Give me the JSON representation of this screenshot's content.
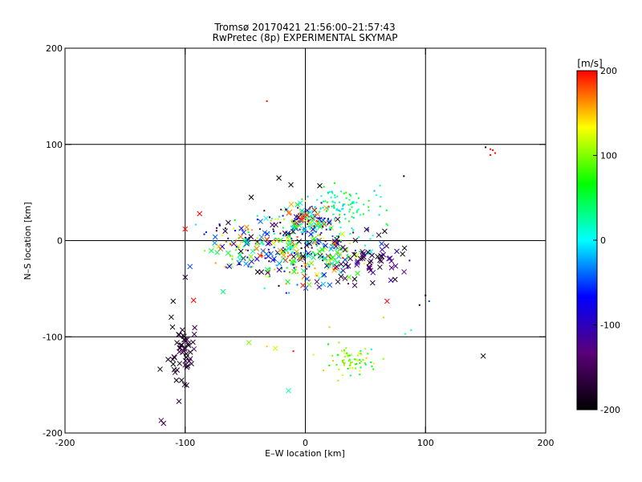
{
  "chart_data": {
    "type": "scatter",
    "title": "Tromsø 20170421 21:56:00–21:57:43",
    "subtitle": "RwPretec (8p) EXPERIMENTAL SKYMAP",
    "xlabel": "E–W location [km]",
    "ylabel": "N–S location [km]",
    "xlim": [
      -200,
      200
    ],
    "ylim": [
      -200,
      200
    ],
    "xticks": [
      -200,
      -100,
      0,
      100,
      200
    ],
    "yticks": [
      -200,
      -100,
      0,
      100,
      200
    ],
    "xtick_labels": [
      "-200",
      "-100",
      "0",
      "100",
      "200"
    ],
    "ytick_labels": [
      "-200",
      "-100",
      "0",
      "100",
      "200"
    ],
    "grid_lines": [
      -100,
      0,
      100
    ],
    "colorbar": {
      "label": "[m/s]",
      "range": [
        -200,
        200
      ],
      "ticks": [
        200,
        100,
        0,
        -100,
        -200
      ],
      "tick_labels": [
        "200",
        "100",
        "0",
        "-100",
        "-200"
      ],
      "stops": [
        "#000000",
        "#5a0078",
        "#0000ff",
        "#00ffff",
        "#00ff00",
        "#ffff00",
        "#ff0000"
      ]
    },
    "clusters": [
      {
        "cx": -5,
        "cy": -15,
        "sx": 28,
        "sy": 15,
        "n": 300,
        "vmin": -200,
        "vmax": 200,
        "marker": "mix"
      },
      {
        "cx": 0,
        "cy": 22,
        "sx": 12,
        "sy": 9,
        "n": 140,
        "vmin": -200,
        "vmax": 200,
        "marker": "mix"
      },
      {
        "cx": 30,
        "cy": 35,
        "sx": 18,
        "sy": 12,
        "n": 110,
        "vmin": -20,
        "vmax": 80,
        "marker": "dot"
      },
      {
        "cx": -55,
        "cy": 0,
        "sx": 18,
        "sy": 12,
        "n": 80,
        "vmin": -200,
        "vmax": 200,
        "marker": "mix"
      },
      {
        "cx": 50,
        "cy": -20,
        "sx": 15,
        "sy": 12,
        "n": 60,
        "vmin": -200,
        "vmax": -100,
        "marker": "x"
      },
      {
        "cx": -102,
        "cy": -120,
        "sx": 6,
        "sy": 18,
        "n": 50,
        "vmin": -200,
        "vmax": -150,
        "marker": "x"
      },
      {
        "cx": 40,
        "cy": -125,
        "sx": 10,
        "sy": 7,
        "n": 70,
        "vmin": 50,
        "vmax": 150,
        "marker": "dot"
      }
    ],
    "points": [
      {
        "x": -32,
        "y": 145,
        "v": 200,
        "m": "dot"
      },
      {
        "x": 150,
        "y": 97,
        "v": -200,
        "m": "dot"
      },
      {
        "x": 154,
        "y": 95,
        "v": 200,
        "m": "dot"
      },
      {
        "x": 156,
        "y": 94,
        "v": 200,
        "m": "dot"
      },
      {
        "x": 158,
        "y": 91,
        "v": 200,
        "m": "dot"
      },
      {
        "x": 154,
        "y": 89,
        "v": 200,
        "m": "dot"
      },
      {
        "x": 148,
        "y": -120,
        "v": -200,
        "m": "x"
      },
      {
        "x": -120,
        "y": -187,
        "v": -150,
        "m": "x"
      },
      {
        "x": -118,
        "y": -190,
        "v": -150,
        "m": "x"
      },
      {
        "x": -14,
        "y": -156,
        "v": 20,
        "m": "x"
      },
      {
        "x": -93,
        "y": -62,
        "v": 200,
        "m": "x"
      },
      {
        "x": -110,
        "y": -63,
        "v": -200,
        "m": "x"
      },
      {
        "x": -96,
        "y": -27,
        "v": -50,
        "m": "x"
      },
      {
        "x": -100,
        "y": 12,
        "v": 200,
        "m": "x"
      },
      {
        "x": -88,
        "y": 28,
        "v": 200,
        "m": "x"
      },
      {
        "x": -45,
        "y": 45,
        "v": -200,
        "m": "x"
      },
      {
        "x": -22,
        "y": 65,
        "v": -200,
        "m": "x"
      },
      {
        "x": -12,
        "y": 58,
        "v": -200,
        "m": "x"
      },
      {
        "x": 68,
        "y": -63,
        "v": 200,
        "m": "x"
      },
      {
        "x": 82,
        "y": 67,
        "v": -200,
        "m": "dot"
      },
      {
        "x": 100,
        "y": -57,
        "v": -200,
        "m": "dot"
      },
      {
        "x": 95,
        "y": -67,
        "v": -200,
        "m": "dot"
      },
      {
        "x": 103,
        "y": -63,
        "v": -50,
        "m": "dot"
      },
      {
        "x": 88,
        "y": -93,
        "v": 20,
        "m": "dot"
      },
      {
        "x": 83,
        "y": -97,
        "v": 0,
        "m": "dot"
      },
      {
        "x": 55,
        "y": -113,
        "v": 20,
        "m": "dot"
      },
      {
        "x": 28,
        "y": -106,
        "v": 100,
        "m": "dot"
      },
      {
        "x": -47,
        "y": -106,
        "v": 100,
        "m": "x"
      },
      {
        "x": -25,
        "y": -112,
        "v": 120,
        "m": "x"
      },
      {
        "x": -32,
        "y": -110,
        "v": 150,
        "m": "dot"
      },
      {
        "x": -10,
        "y": -115,
        "v": 200,
        "m": "dot"
      },
      {
        "x": 15,
        "y": -135,
        "v": 150,
        "m": "dot"
      },
      {
        "x": 20,
        "y": -90,
        "v": 150,
        "m": "dot"
      },
      {
        "x": 65,
        "y": -80,
        "v": 150,
        "m": "dot"
      },
      {
        "x": 12,
        "y": 57,
        "v": -200,
        "m": "x"
      }
    ]
  }
}
